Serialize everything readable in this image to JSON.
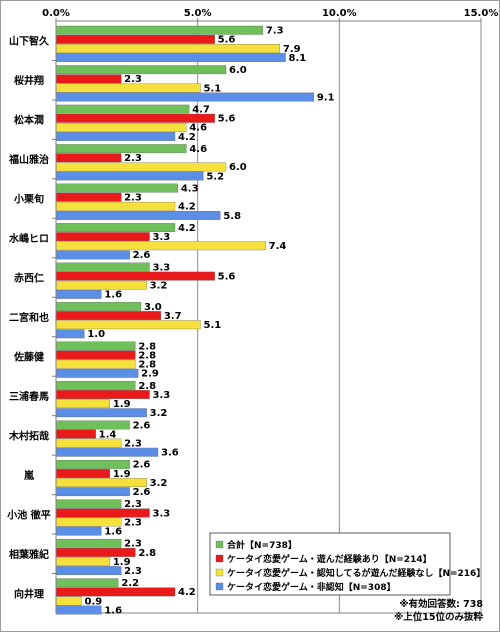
{
  "chart_data": {
    "type": "bar",
    "orientation": "horizontal",
    "x_ticks": [
      "0.0%",
      "5.0%",
      "10.0%",
      "15.0%"
    ],
    "xlim": [
      0,
      15
    ],
    "grid": true,
    "legend_position": "bottom-right",
    "categories": [
      "山下智久",
      "桜井翔",
      "松本潤",
      "福山雅治",
      "小栗旬",
      "水嶋ヒロ",
      "赤西仁",
      "二宮和也",
      "佐藤健",
      "三浦春馬",
      "木村拓哉",
      "嵐",
      "小池 徹平",
      "相葉雅紀",
      "向井理"
    ],
    "series": [
      {
        "name": "合計【N=738】",
        "color": "#6fbf5a",
        "values": [
          7.3,
          6.0,
          4.7,
          4.6,
          4.3,
          4.2,
          3.3,
          3.0,
          2.8,
          2.8,
          2.6,
          2.6,
          2.3,
          2.3,
          2.2
        ]
      },
      {
        "name": "ケータイ恋愛ゲーム・遊んだ経験あり【N=214】",
        "color": "#ea1a1a",
        "values": [
          5.6,
          2.3,
          5.6,
          2.3,
          2.3,
          3.3,
          5.6,
          3.7,
          2.8,
          3.3,
          1.4,
          1.9,
          3.3,
          2.8,
          4.2
        ]
      },
      {
        "name": "ケータイ恋愛ゲーム・認知してるが遊んだ経験なし【N=216】",
        "color": "#f5e03c",
        "values": [
          7.9,
          5.1,
          4.6,
          6.0,
          4.2,
          7.4,
          3.2,
          5.1,
          2.8,
          1.9,
          2.3,
          3.2,
          2.3,
          1.9,
          0.9
        ]
      },
      {
        "name": "ケータイ恋愛ゲーム・非認知【N=308】",
        "color": "#5b8ee6",
        "values": [
          8.1,
          9.1,
          4.2,
          5.2,
          5.8,
          2.6,
          1.6,
          1.0,
          2.9,
          3.2,
          3.6,
          2.6,
          1.6,
          2.3,
          1.6
        ]
      }
    ]
  },
  "notes": [
    "※有効回答数: 738",
    "※上位15位のみ抜粋"
  ]
}
